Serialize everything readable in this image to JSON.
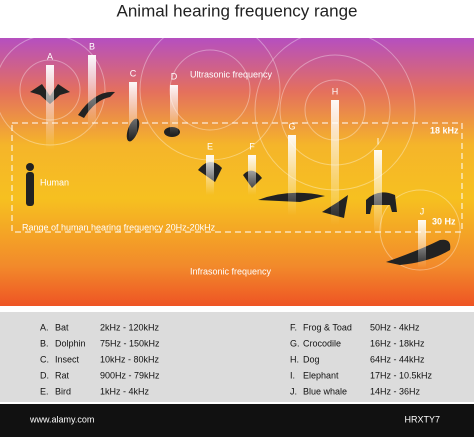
{
  "title": "Animal hearing frequency range",
  "labels": {
    "ultrasonic": "Ultrasonic frequency",
    "khz18": "18 kHz",
    "human": "Human",
    "hz30": "30 Hz",
    "range": "Range of human hearing frequency 20Hz-20kHz",
    "infrasonic": "Infrasonic frequency"
  },
  "markers": [
    "A",
    "B",
    "C",
    "D",
    "E",
    "F",
    "G",
    "H",
    "I",
    "J"
  ],
  "animals": [
    {
      "key": "A.",
      "name": "Bat",
      "range": "2kHz - 120kHz"
    },
    {
      "key": "B.",
      "name": "Dolphin",
      "range": "75Hz - 150kHz"
    },
    {
      "key": "C.",
      "name": "Insect",
      "range": "10kHz - 80kHz"
    },
    {
      "key": "D.",
      "name": "Rat",
      "range": "900Hz - 79kHz"
    },
    {
      "key": "E.",
      "name": "Bird",
      "range": "1kHz - 4kHz"
    },
    {
      "key": "F.",
      "name": "Frog & Toad",
      "range": "50Hz - 4kHz"
    },
    {
      "key": "G.",
      "name": "Crocodile",
      "range": "16Hz - 18kHz"
    },
    {
      "key": "H.",
      "name": "Dog",
      "range": "64Hz - 44kHz"
    },
    {
      "key": "I.",
      "name": "Elephant",
      "range": "17Hz - 10.5kHz"
    },
    {
      "key": "J.",
      "name": "Blue whale",
      "range": "14Hz - 36Hz"
    }
  ],
  "footer": {
    "id": "HRXTY7",
    "site": "www.alamy.com"
  }
}
